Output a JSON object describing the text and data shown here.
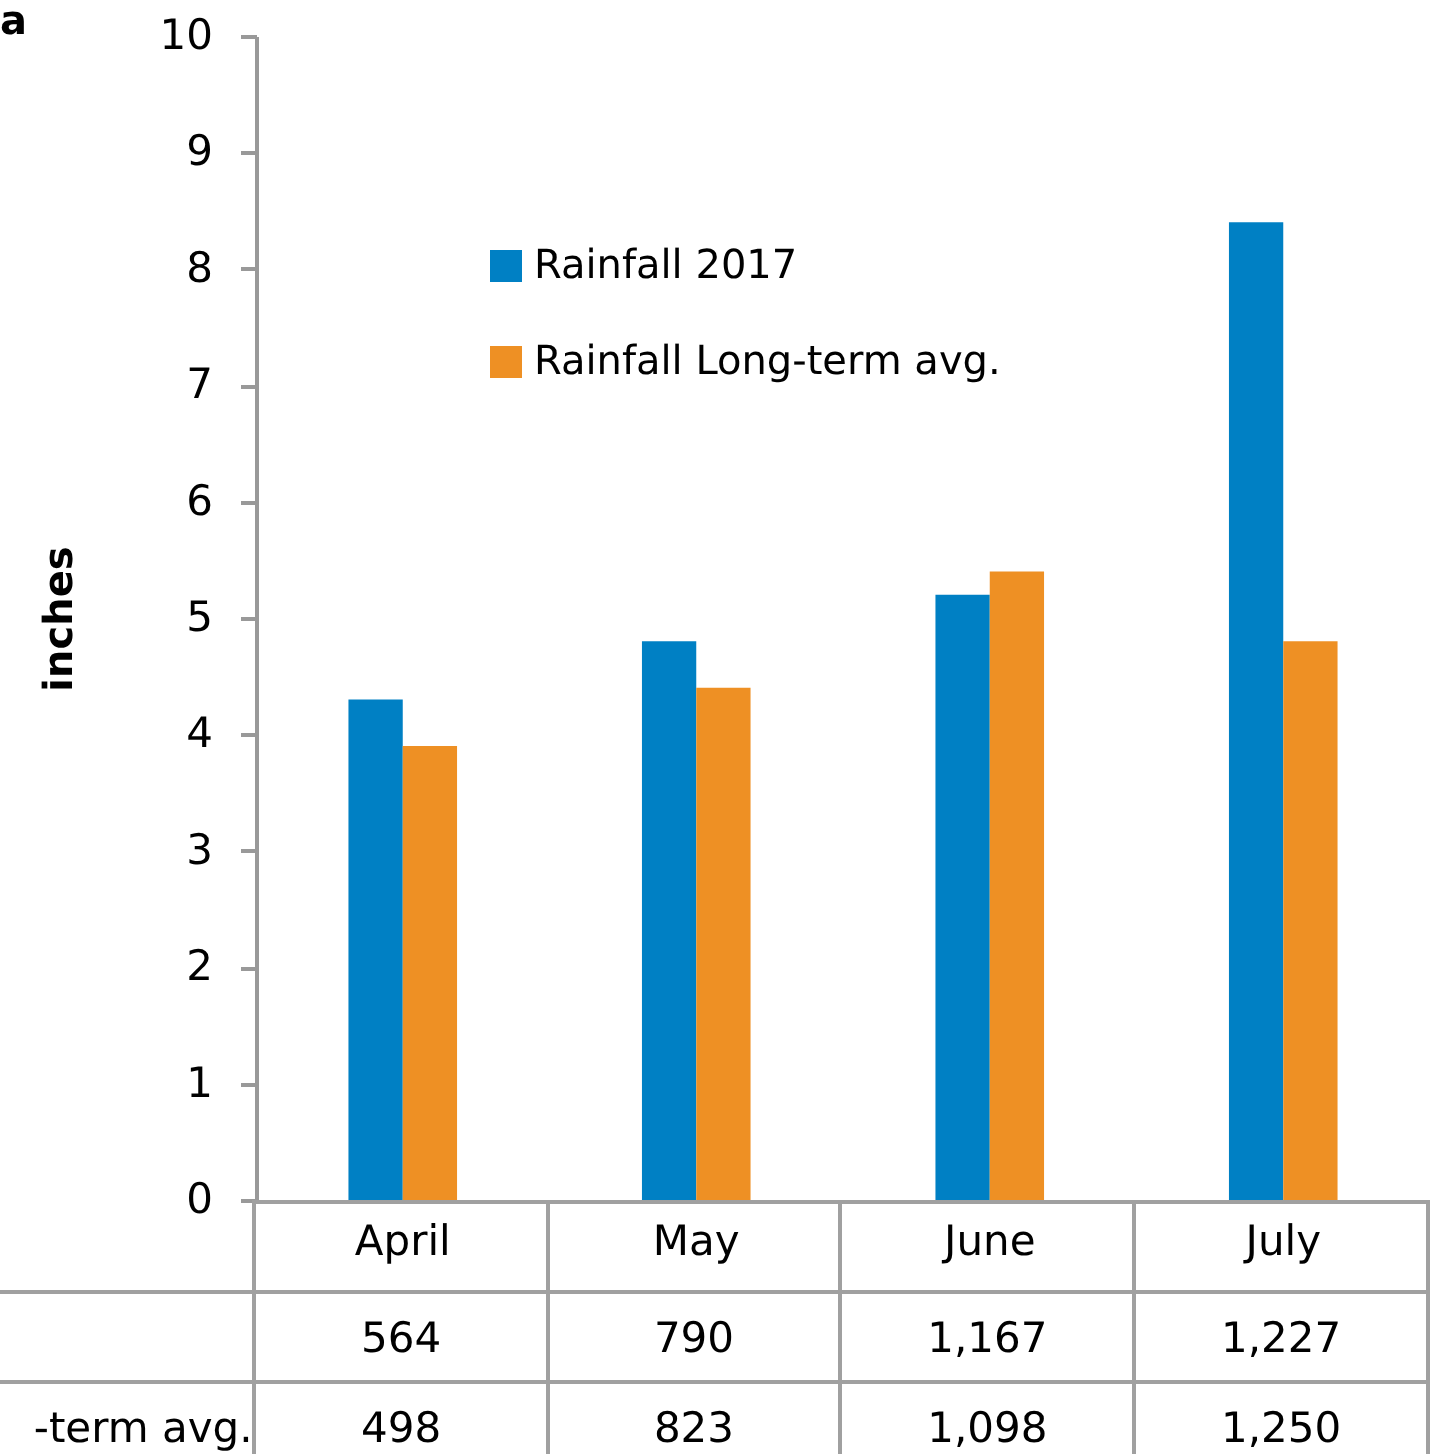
{
  "chart_data": {
    "type": "bar",
    "ylabel": "inches",
    "categories": [
      "April",
      "May",
      "June",
      "July"
    ],
    "series": [
      {
        "name": "Rainfall 2017",
        "color": "#0080c4",
        "values": [
          4.3,
          4.8,
          5.2,
          8.4
        ]
      },
      {
        "name": "Rainfall Long-term avg.",
        "color": "#ee9024",
        "values": [
          3.9,
          4.4,
          5.4,
          4.8
        ]
      }
    ],
    "ylim": [
      0,
      10
    ],
    "yticks": [
      0,
      1,
      2,
      3,
      4,
      5,
      6,
      7,
      8,
      9,
      10
    ],
    "grid": false,
    "legend": "top",
    "annotations": [
      "a",
      "-term avg.",
      "564",
      "790",
      "1,167",
      "1,227",
      "498",
      "823",
      "1,098",
      "1,250"
    ]
  }
}
